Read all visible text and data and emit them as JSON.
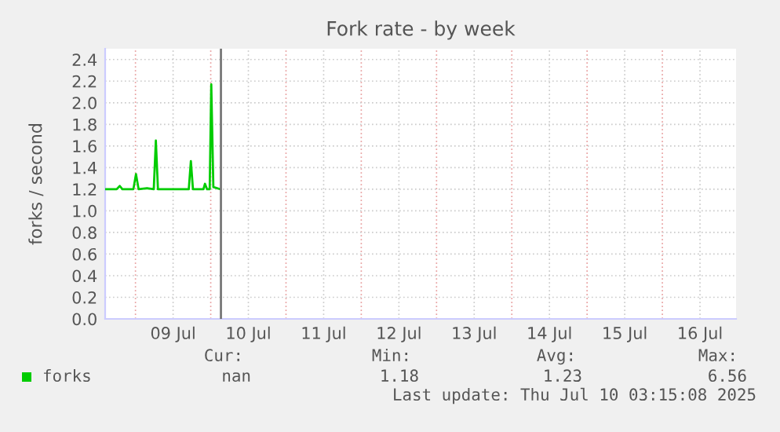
{
  "chart_data": {
    "type": "line",
    "title": "Fork rate - by week",
    "ylabel": "forks / second",
    "x": [
      "2025-07-08T14:20",
      "2025-07-08T18:00",
      "2025-07-08T19:00",
      "2025-07-08T19:50",
      "2025-07-08T23:20",
      "2025-07-09T00:10",
      "2025-07-09T01:00",
      "2025-07-09T03:40",
      "2025-07-09T05:50",
      "2025-07-09T06:30",
      "2025-07-09T07:10",
      "2025-07-09T17:00",
      "2025-07-09T17:40",
      "2025-07-09T18:20",
      "2025-07-09T21:40",
      "2025-07-09T22:10",
      "2025-07-09T22:50",
      "2025-07-09T23:40",
      "2025-07-10T00:10",
      "2025-07-10T00:50",
      "2025-07-10T03:00"
    ],
    "series": [
      {
        "name": "forks",
        "color": "#00cc00",
        "values": [
          1.2,
          1.2,
          1.23,
          1.2,
          1.2,
          1.34,
          1.2,
          1.21,
          1.2,
          1.65,
          1.2,
          1.2,
          1.46,
          1.2,
          1.2,
          1.25,
          1.2,
          1.2,
          2.17,
          1.22,
          1.2
        ]
      }
    ],
    "xlim": [
      "2025-07-08T14:20",
      "2025-07-16T23:30"
    ],
    "xticks": [
      {
        "value": "2025-07-09T00:00",
        "label": null
      },
      {
        "value": "2025-07-09T12:00",
        "label": "09 Jul"
      },
      {
        "value": "2025-07-10T00:00",
        "label": null
      },
      {
        "value": "2025-07-10T12:00",
        "label": "10 Jul"
      },
      {
        "value": "2025-07-11T00:00",
        "label": null
      },
      {
        "value": "2025-07-11T12:00",
        "label": "11 Jul"
      },
      {
        "value": "2025-07-12T00:00",
        "label": null
      },
      {
        "value": "2025-07-12T12:00",
        "label": "12 Jul"
      },
      {
        "value": "2025-07-13T00:00",
        "label": null
      },
      {
        "value": "2025-07-13T12:00",
        "label": "13 Jul"
      },
      {
        "value": "2025-07-14T00:00",
        "label": null
      },
      {
        "value": "2025-07-14T12:00",
        "label": "14 Jul"
      },
      {
        "value": "2025-07-15T00:00",
        "label": null
      },
      {
        "value": "2025-07-15T12:00",
        "label": "15 Jul"
      },
      {
        "value": "2025-07-16T00:00",
        "label": null
      },
      {
        "value": "2025-07-16T12:00",
        "label": "16 Jul"
      }
    ],
    "ylim": [
      0,
      2.5
    ],
    "yticks": [
      {
        "value": 0,
        "label": "0.0"
      },
      {
        "value": 0.2,
        "label": "0.2"
      },
      {
        "value": 0.4,
        "label": "0.4"
      },
      {
        "value": 0.6,
        "label": "0.6"
      },
      {
        "value": 0.8,
        "label": "0.8"
      },
      {
        "value": 1.0,
        "label": "1.0"
      },
      {
        "value": 1.2,
        "label": "1.2"
      },
      {
        "value": 1.4,
        "label": "1.4"
      },
      {
        "value": 1.6,
        "label": "1.6"
      },
      {
        "value": 1.8,
        "label": "1.8"
      },
      {
        "value": 2.0,
        "label": "2.0"
      },
      {
        "value": 2.2,
        "label": "2.2"
      },
      {
        "value": 2.4,
        "label": "2.4"
      }
    ],
    "ref_lines": [
      {
        "axis": "x",
        "value": "2025-07-10T03:15",
        "color": "#777777"
      }
    ],
    "grid": true,
    "legend": "bottom",
    "marker": "none",
    "line_style": "solid",
    "annotations": [
      "Cur:",
      "Min:",
      "Avg:",
      "Max:",
      "nan",
      "1.18",
      "1.23",
      "6.56",
      "Last update: Thu Jul 10 03:15:08 2025"
    ]
  }
}
